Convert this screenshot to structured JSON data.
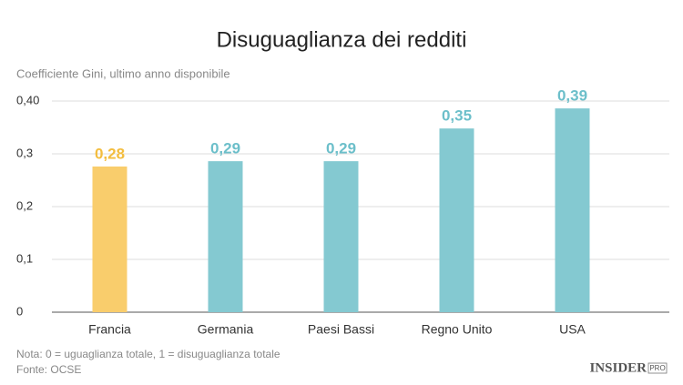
{
  "chart_data": {
    "type": "bar",
    "title": "Disuguaglianza dei redditi",
    "subtitle": "Coefficiente Gini, ultimo anno disponibile",
    "categories": [
      "Francia",
      "Germania",
      "Paesi Bassi",
      "Regno Unito",
      "USA"
    ],
    "values": [
      0.276,
      0.286,
      0.286,
      0.348,
      0.386
    ],
    "value_labels": [
      "0,28",
      "0,29",
      "0,29",
      "0,35",
      "0,39"
    ],
    "colors": [
      "#f9cd6c",
      "#84c9d1",
      "#84c9d1",
      "#84c9d1",
      "#84c9d1"
    ],
    "label_colors": [
      "#f3bd3e",
      "#6cbfca",
      "#6cbfca",
      "#6cbfca",
      "#6cbfca"
    ],
    "ylim": [
      0,
      0.4
    ],
    "yticks": [
      0,
      {
        "value": 0.1,
        "label": "0,1"
      },
      {
        "value": 0.2,
        "label": "0,2"
      },
      {
        "value": 0.3,
        "label": "0,3"
      },
      {
        "value": 0.4,
        "label": "0,40"
      }
    ],
    "grid": true,
    "notes": [
      "Nota: 0 = uguaglianza totale, 1 = disuguaglianza totale",
      "Fonte: OCSE"
    ],
    "logo": {
      "text": "INSIDER",
      "badge": "PRO"
    }
  }
}
